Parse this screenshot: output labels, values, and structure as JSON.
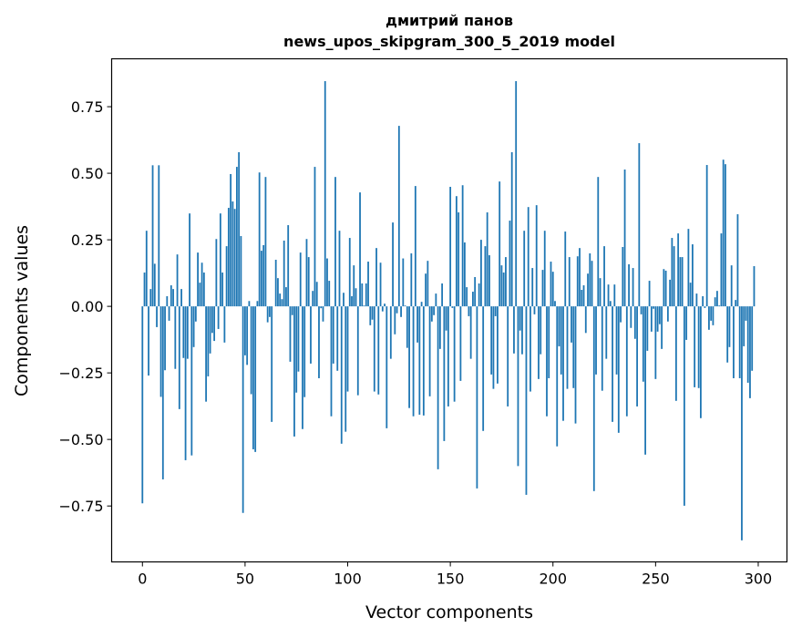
{
  "chart_data": {
    "type": "bar",
    "title": "дмитрий панов",
    "subtitle": "news_upos_skipgram_300_5_2019 model",
    "xlabel": "Vector components",
    "ylabel": "Components values",
    "xlim": [
      -15,
      314
    ],
    "ylim": [
      -0.96,
      0.93
    ],
    "xticks": [
      0,
      50,
      100,
      150,
      200,
      250,
      300
    ],
    "xtick_labels": [
      "0",
      "50",
      "100",
      "150",
      "200",
      "250",
      "300"
    ],
    "yticks": [
      -0.75,
      -0.5,
      -0.25,
      0,
      0.25,
      0.5,
      0.75
    ],
    "ytick_labels": [
      "−0.75",
      "−0.50",
      "−0.25",
      "0.00",
      "0.25",
      "0.50",
      "0.75"
    ],
    "grid": false,
    "bar_color": "#1f77b4",
    "values": [
      -0.74,
      0.127,
      0.284,
      -0.26,
      0.065,
      0.53,
      0.16,
      -0.078,
      0.53,
      -0.34,
      -0.65,
      -0.24,
      0.038,
      -0.054,
      0.079,
      0.065,
      -0.235,
      0.195,
      -0.386,
      0.065,
      -0.194,
      -0.578,
      -0.197,
      0.349,
      -0.56,
      -0.153,
      -0.057,
      0.202,
      0.089,
      0.164,
      0.127,
      -0.358,
      -0.263,
      -0.177,
      -0.1,
      -0.13,
      0.253,
      -0.085,
      0.349,
      0.127,
      -0.136,
      0.226,
      0.37,
      0.497,
      0.394,
      0.366,
      0.524,
      0.579,
      0.264,
      -0.776,
      -0.184,
      -0.22,
      0.02,
      -0.33,
      -0.537,
      -0.547,
      0.02,
      0.503,
      0.209,
      0.23,
      0.486,
      -0.06,
      -0.04,
      -0.434,
      0.0,
      0.175,
      0.106,
      0.048,
      0.027,
      0.247,
      0.072,
      0.305,
      -0.208,
      -0.033,
      -0.489,
      -0.324,
      -0.245,
      0.202,
      -0.461,
      -0.341,
      0.253,
      0.185,
      -0.215,
      0.058,
      0.524,
      0.092,
      -0.27,
      -0.007,
      -0.057,
      0.846,
      0.18,
      0.096,
      -0.413,
      -0.215,
      0.486,
      -0.242,
      0.284,
      -0.516,
      0.051,
      -0.471,
      -0.32,
      0.257,
      0.038,
      0.154,
      0.068,
      -0.334,
      0.428,
      0.086,
      0.003,
      0.086,
      0.168,
      -0.071,
      -0.05,
      -0.32,
      0.219,
      -0.331,
      0.164,
      -0.019,
      0.01,
      -0.458,
      0.0,
      -0.197,
      0.315,
      -0.105,
      -0.026,
      0.678,
      -0.04,
      0.18,
      0.003,
      -0.156,
      -0.382,
      0.199,
      -0.413,
      0.452,
      -0.136,
      -0.407,
      0.017,
      -0.41,
      0.123,
      0.171,
      -0.338,
      -0.057,
      -0.033,
      0.048,
      -0.612,
      -0.16,
      0.086,
      -0.506,
      -0.091,
      -0.376,
      0.449,
      -0.006,
      -0.358,
      0.414,
      0.353,
      -0.28,
      0.455,
      0.24,
      0.072,
      -0.037,
      -0.197,
      0.055,
      0.11,
      -0.684,
      0.086,
      0.25,
      -0.468,
      0.226,
      0.353,
      0.192,
      -0.256,
      -0.31,
      -0.037,
      -0.29,
      0.469,
      0.154,
      0.127,
      0.185,
      -0.376,
      0.322,
      0.579,
      -0.177,
      0.846,
      -0.6,
      -0.091,
      -0.18,
      0.284,
      -0.708,
      0.373,
      -0.32,
      0.144,
      -0.03,
      0.38,
      -0.273,
      -0.18,
      0.137,
      0.284,
      -0.413,
      -0.27,
      0.168,
      0.13,
      0.02,
      -0.526,
      -0.15,
      -0.256,
      -0.43,
      0.281,
      -0.31,
      0.185,
      -0.136,
      -0.307,
      -0.44,
      0.188,
      0.219,
      0.062,
      0.079,
      -0.1,
      0.123,
      0.199,
      0.171,
      -0.694,
      -0.256,
      0.486,
      0.106,
      -0.317,
      0.226,
      -0.197,
      0.082,
      0.02,
      -0.434,
      0.082,
      -0.256,
      -0.475,
      -0.06,
      0.223,
      0.514,
      -0.413,
      0.158,
      -0.081,
      0.144,
      -0.122,
      -0.376,
      0.613,
      -0.03,
      -0.283,
      -0.557,
      -0.167,
      0.096,
      -0.095,
      -0.009,
      -0.273,
      -0.095,
      -0.067,
      -0.16,
      0.14,
      0.134,
      -0.057,
      0.1,
      0.257,
      0.226,
      -0.355,
      0.274,
      0.185,
      0.185,
      -0.749,
      -0.126,
      0.291,
      0.089,
      0.233,
      -0.304,
      0.048,
      -0.307,
      -0.42,
      0.038,
      -0.006,
      0.531,
      -0.088,
      -0.054,
      -0.071,
      0.034,
      0.058,
      0.003,
      0.274,
      0.551,
      0.534,
      -0.211,
      -0.153,
      0.154,
      -0.27,
      0.024,
      0.346,
      -0.27,
      -0.879,
      -0.15,
      -0.054,
      -0.287,
      -0.345,
      -0.242,
      0.151,
      0.0
    ]
  }
}
